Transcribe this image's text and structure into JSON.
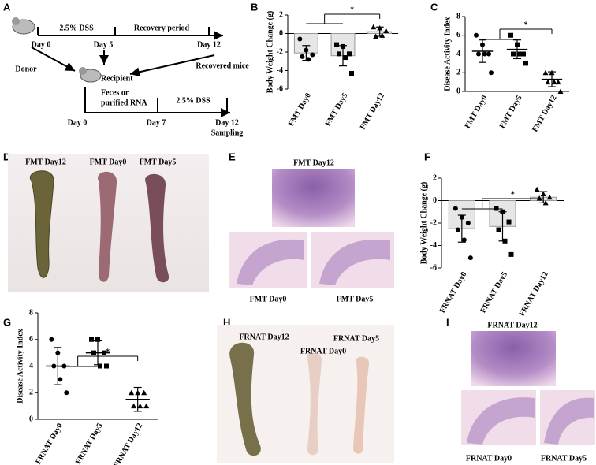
{
  "panel_letters": [
    "A",
    "B",
    "C",
    "D",
    "E",
    "F",
    "G",
    "H",
    "I"
  ],
  "timeline": {
    "donor": "Donor",
    "top": {
      "day_start": "Day 0",
      "phase1": "2.5% DSS",
      "day_mid": "Day 5",
      "phase2": "Recovery period",
      "day_end": "Day 12"
    },
    "recovered": "Recovered mice",
    "recipient": "Recipient",
    "transfer": [
      "Feces or",
      "purified RNA"
    ],
    "bottom": {
      "day_start": "Day 0",
      "day_mid": "Day 7",
      "phase": "2.5% DSS",
      "day_end": "Day 12",
      "end_note": "Sampling"
    }
  },
  "chart_data": [
    {
      "type": "bar",
      "ylabel": "Body Weight Change (g)",
      "categories": [
        "FMT Day0",
        "FMT Day5",
        "FMT Day12"
      ],
      "values": [
        -2.1,
        -2.4,
        0.2
      ],
      "errors": [
        0.8,
        1.1,
        0.5
      ],
      "color": "#e6e6e6",
      "points": [
        [
          -0.6,
          -1.8,
          -2.3,
          -2.5,
          -2.8
        ],
        [
          -1.2,
          -1.4,
          -2.2,
          -2.2,
          -2.6,
          -4.3
        ],
        [
          0.7,
          0.6,
          0.3,
          -0.3,
          -0.2
        ]
      ],
      "markers": [
        "circle",
        "square",
        "triangle"
      ],
      "annotation": "*",
      "ylim": [
        -6,
        2
      ],
      "yticks": [
        -6,
        -4,
        -2,
        0,
        2
      ]
    },
    {
      "type": "scatter",
      "ylabel": "Disease Activity Index",
      "categories": [
        "FMT Day0",
        "FMT Day5",
        "FMT Day12"
      ],
      "values": [
        4.3,
        4.5,
        1.3
      ],
      "errors": [
        1.2,
        1.0,
        0.8
      ],
      "points": [
        [
          6,
          5,
          4,
          4,
          4,
          2
        ],
        [
          6,
          5,
          4,
          4,
          4,
          3
        ],
        [
          2,
          2,
          1,
          1,
          1,
          0
        ]
      ],
      "markers": [
        "circle",
        "square",
        "triangle"
      ],
      "annotation": "*",
      "ylim": [
        0,
        8
      ],
      "yticks": [
        0,
        2,
        4,
        6,
        8
      ]
    },
    {
      "type": "bar",
      "ylabel": "Body Weight Change (g)",
      "categories": [
        "FRNAT Day0",
        "FRNAT Day5",
        "FRNAT Day12"
      ],
      "values": [
        -2.5,
        -2.3,
        0.3
      ],
      "errors": [
        1.2,
        1.3,
        0.5
      ],
      "color": "#e6e6e6",
      "points": [
        [
          -0.7,
          -1.5,
          -2.0,
          -2.6,
          -3.5,
          -5.1
        ],
        [
          -0.7,
          -1.0,
          -1.9,
          -2.6,
          -3.6,
          -4.8
        ],
        [
          1.0,
          0.6,
          0.3,
          0.2,
          -0.2
        ]
      ],
      "markers": [
        "circle",
        "square",
        "triangle"
      ],
      "annotation": "*",
      "ylim": [
        -6,
        2
      ],
      "yticks": [
        -6,
        -4,
        -2,
        0,
        2
      ]
    },
    {
      "type": "scatter",
      "ylabel": "Disease Activity Index",
      "categories": [
        "FRNAT Day0",
        "FRNAT Day5",
        "FRNAT Day12"
      ],
      "values": [
        4.0,
        5.0,
        1.5
      ],
      "errors": [
        1.4,
        0.9,
        0.9
      ],
      "points": [
        [
          6,
          5,
          4,
          4,
          3,
          2
        ],
        [
          6,
          6,
          5,
          5,
          4,
          4
        ],
        [
          2,
          2,
          2,
          1,
          1,
          1
        ]
      ],
      "markers": [
        "circle",
        "square",
        "triangle"
      ],
      "annotation": "*",
      "ylim": [
        0,
        8
      ],
      "yticks": [
        0,
        2,
        4,
        6,
        8
      ]
    }
  ],
  "photos": {
    "D": [
      "FMT Day12",
      "FMT Day0",
      "FMT Day5"
    ],
    "E": [
      "FMT Day12",
      "FMT Day0",
      "FMT Day5"
    ],
    "H": [
      "FRNAT Day12",
      "FRNAT Day0",
      "FRNAT Day5"
    ],
    "I": [
      "FRNAT Day12",
      "FRNAT Day0",
      "FRNAT Day5"
    ]
  }
}
